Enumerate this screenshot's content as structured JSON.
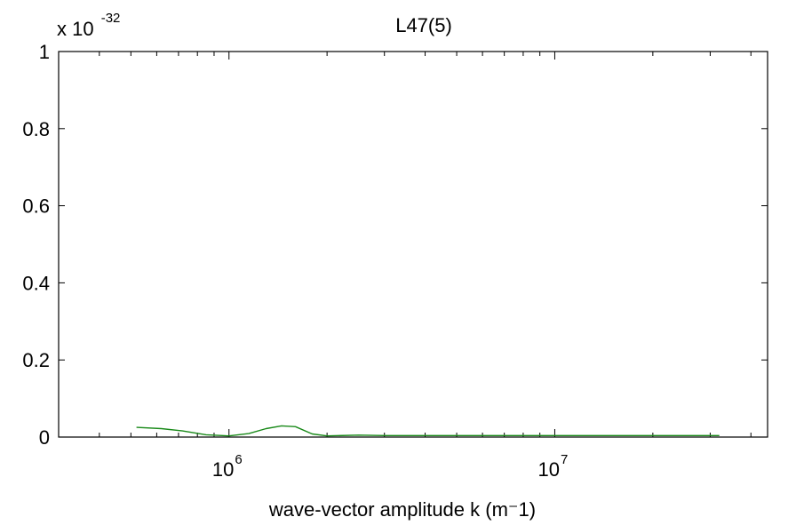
{
  "chart_data": {
    "type": "line",
    "title": "L47(5)",
    "xlabel": "wave-vector amplitude k  (m⁻1)",
    "ylabel": "",
    "x_scale": "log",
    "xlim": [
      300000,
      45000000
    ],
    "ylim": [
      0,
      1
    ],
    "y_multiplier": {
      "prefix": "x 10",
      "exponent": "-32"
    },
    "x_ticks": [
      {
        "value": 1000000,
        "base": "10",
        "exponent": "6"
      },
      {
        "value": 10000000,
        "base": "10",
        "exponent": "7"
      }
    ],
    "y_ticks": [
      {
        "value": 0,
        "label": "0"
      },
      {
        "value": 0.2,
        "label": "0.2"
      },
      {
        "value": 0.4,
        "label": "0.4"
      },
      {
        "value": 0.6,
        "label": "0.6"
      },
      {
        "value": 0.8,
        "label": "0.8"
      },
      {
        "value": 1,
        "label": "1"
      }
    ],
    "grid": false,
    "series": [
      {
        "color": "#1a8a1a",
        "x": [
          520000,
          620000,
          720000,
          850000,
          1000000,
          1150000,
          1300000,
          1450000,
          1600000,
          1800000,
          2000000,
          2500000,
          3000000,
          5000000,
          10000000,
          20000000,
          32000000
        ],
        "y": [
          0.025,
          0.022,
          0.016,
          0.006,
          0.003,
          0.009,
          0.022,
          0.029,
          0.027,
          0.008,
          0.003,
          0.005,
          0.004,
          0.004,
          0.004,
          0.004,
          0.004
        ]
      }
    ]
  }
}
